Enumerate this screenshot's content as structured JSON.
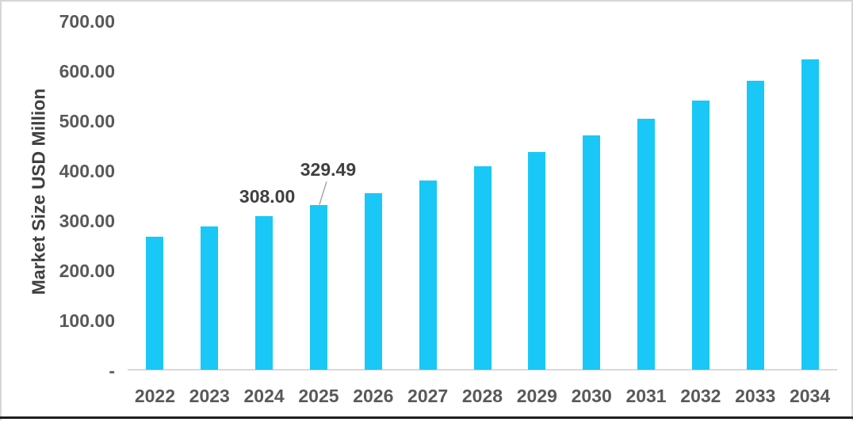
{
  "chart_data": {
    "type": "bar",
    "title": "",
    "xlabel": "",
    "ylabel": "Market Size USD Million",
    "categories": [
      "2022",
      "2023",
      "2024",
      "2025",
      "2026",
      "2027",
      "2028",
      "2029",
      "2030",
      "2031",
      "2032",
      "2033",
      "2034"
    ],
    "values": [
      267,
      287,
      308.0,
      329.49,
      353.6,
      379.5,
      407.3,
      437.1,
      469.1,
      503.4,
      540.3,
      579.8,
      622.3
    ],
    "labeled_values": [
      {
        "category": "2024",
        "text": "308.00"
      },
      {
        "category": "2025",
        "text": "329.49"
      }
    ],
    "y_ticks": [
      {
        "value": 700,
        "label": "700.00"
      },
      {
        "value": 600,
        "label": "600.00"
      },
      {
        "value": 500,
        "label": "500.00"
      },
      {
        "value": 400,
        "label": "400.00"
      },
      {
        "value": 300,
        "label": "300.00"
      },
      {
        "value": 200,
        "label": "200.00"
      },
      {
        "value": 100,
        "label": "100.00"
      },
      {
        "value": 0,
        "label": "-"
      }
    ],
    "ylim": [
      0,
      700
    ],
    "grid": false,
    "legend": "none",
    "colors": {
      "bar": "#19C8F7",
      "tick_text": "#595959",
      "axis_title_text": "#404040",
      "annotation_text": "#404040",
      "axis_line": "#D9D9D9",
      "leader_line": "#A6A6A6",
      "frame_border": "#D6D6D6",
      "bottom_rule": "#1F1F1F",
      "background": "#FFFFFF"
    }
  }
}
